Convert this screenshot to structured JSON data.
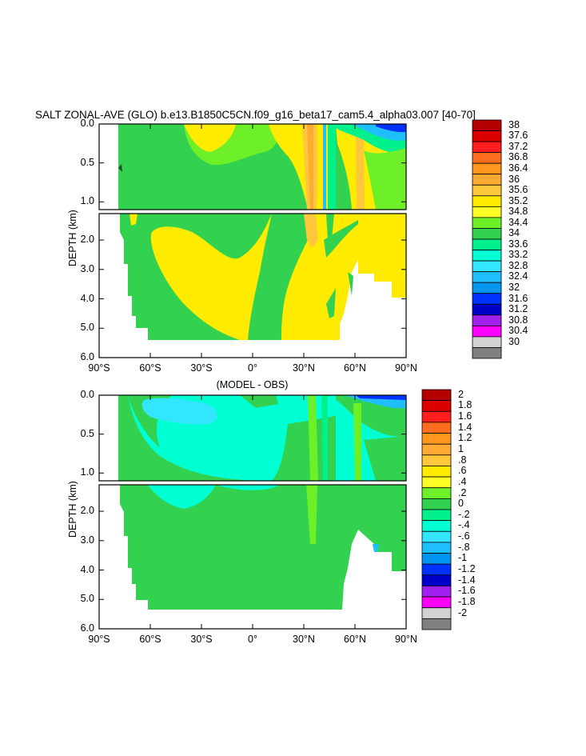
{
  "chart_data": [
    {
      "type": "heatmap",
      "title": "SALT ZONAL-AVE (GLO) b.e13.B1850C5CN.f09_g16_beta17_cam5.4_alpha03.007 [40-70]",
      "ylabel": "DEPTH (km)",
      "y_ticks_upper": [
        "0.0",
        "0.5",
        "1.0"
      ],
      "y_ticks_lower": [
        "2.0",
        "3.0",
        "4.0",
        "5.0",
        "6.0"
      ],
      "x_ticks": [
        "90°S",
        "60°S",
        "30°S",
        "0°",
        "30°N",
        "60°N",
        "90°N"
      ],
      "xlim": [
        -90,
        90
      ],
      "ylim": [
        0,
        6
      ],
      "colorbar_levels": [
        "38",
        "37.6",
        "37.2",
        "36.8",
        "36.4",
        "36",
        "35.6",
        "35.2",
        "34.8",
        "34.4",
        "34",
        "33.6",
        "33.2",
        "32.8",
        "32.4",
        "32",
        "31.6",
        "31.2",
        "30.8",
        "30.4",
        "30"
      ],
      "colorbar_colors": [
        "#b40000",
        "#dc0000",
        "#ff1e1e",
        "#ff6e1e",
        "#ff961e",
        "#ffaa32",
        "#ffc83c",
        "#ffeb00",
        "#ffff28",
        "#6ef028",
        "#32d250",
        "#00f08c",
        "#00ffd2",
        "#32e6ff",
        "#1ebeff",
        "#0096f0",
        "#0032ff",
        "#0000c8",
        "#a020f0",
        "#ff00ff",
        "#d2d2d2",
        "#808080"
      ]
    },
    {
      "type": "heatmap",
      "title": "(MODEL - OBS)",
      "ylabel": "DEPTH (km)",
      "y_ticks_upper": [
        "0.0",
        "0.5",
        "1.0"
      ],
      "y_ticks_lower": [
        "2.0",
        "3.0",
        "4.0",
        "5.0",
        "6.0"
      ],
      "x_ticks": [
        "90°S",
        "60°S",
        "30°S",
        "0°",
        "30°N",
        "60°N",
        "90°N"
      ],
      "xlim": [
        -90,
        90
      ],
      "ylim": [
        0,
        6
      ],
      "colorbar_levels": [
        "2",
        "1.8",
        "1.6",
        "1.4",
        "1.2",
        "1",
        ".8",
        ".6",
        ".4",
        ".2",
        "0",
        "-.2",
        "-.4",
        "-.6",
        "-.8",
        "-1",
        "-1.2",
        "-1.4",
        "-1.6",
        "-1.8",
        "-2"
      ],
      "colorbar_colors": [
        "#b40000",
        "#dc0000",
        "#ff1e1e",
        "#ff6e1e",
        "#ff961e",
        "#ffaa32",
        "#ffc83c",
        "#ffeb00",
        "#ffff28",
        "#6ef028",
        "#32d250",
        "#00f08c",
        "#00ffd2",
        "#32e6ff",
        "#1ebeff",
        "#0096f0",
        "#0032ff",
        "#0000c8",
        "#a020f0",
        "#ff00ff",
        "#d2d2d2",
        "#808080"
      ]
    }
  ]
}
